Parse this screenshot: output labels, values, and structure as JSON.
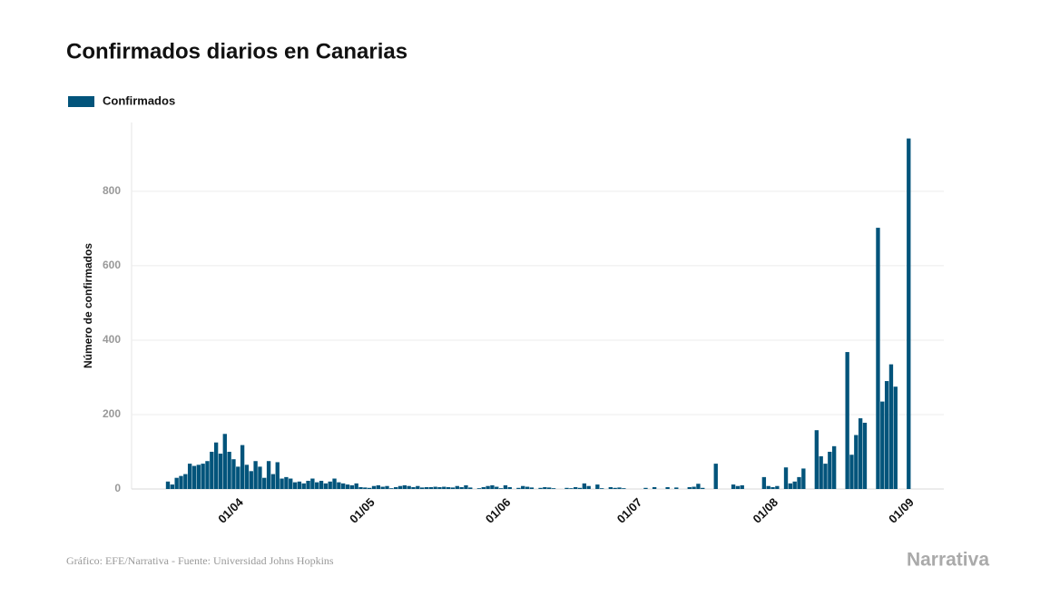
{
  "chart_data": {
    "type": "bar",
    "title": "Confirmados diarios en Canarias",
    "y_label": "Número de confirmados",
    "source": "Gráfico: EFE/Narrativa - Fuente: Universidad Johns Hopkins",
    "logo": "Narrativa",
    "categories": [
      null,
      null,
      null,
      null,
      null,
      null,
      null,
      null,
      null,
      null,
      null,
      null,
      null,
      null,
      null,
      null,
      "01/04",
      null,
      null,
      null,
      null,
      null,
      null,
      null,
      null,
      null,
      null,
      null,
      null,
      null,
      null,
      null,
      null,
      null,
      null,
      null,
      null,
      null,
      null,
      null,
      null,
      null,
      null,
      null,
      null,
      null,
      "01/05",
      null,
      null,
      null,
      null,
      null,
      null,
      null,
      null,
      null,
      null,
      null,
      null,
      null,
      null,
      null,
      null,
      null,
      null,
      null,
      null,
      null,
      null,
      null,
      null,
      null,
      null,
      null,
      null,
      null,
      null,
      "01/06",
      null,
      null,
      null,
      null,
      null,
      null,
      null,
      null,
      null,
      null,
      null,
      null,
      null,
      null,
      null,
      null,
      null,
      null,
      null,
      null,
      null,
      null,
      null,
      null,
      null,
      null,
      null,
      null,
      null,
      "01/07",
      null,
      null,
      null,
      null,
      null,
      null,
      null,
      null,
      null,
      null,
      null,
      null,
      null,
      null,
      null,
      null,
      null,
      null,
      null,
      null,
      null,
      null,
      null,
      null,
      null,
      null,
      null,
      null,
      null,
      null,
      "01/08",
      null,
      null,
      null,
      null,
      null,
      null,
      null,
      null,
      null,
      null,
      null,
      null,
      null,
      null,
      null,
      null,
      null,
      null,
      null,
      null,
      null,
      null,
      null,
      null,
      null,
      null,
      null,
      null,
      null,
      null,
      "01/09"
    ],
    "series": [
      {
        "name": "Confirmados",
        "color": "#02547b",
        "values": [
          20,
          12,
          30,
          35,
          40,
          68,
          62,
          65,
          68,
          75,
          100,
          125,
          95,
          148,
          100,
          80,
          60,
          118,
          65,
          48,
          75,
          60,
          30,
          75,
          40,
          72,
          28,
          32,
          28,
          18,
          20,
          15,
          22,
          28,
          18,
          22,
          15,
          20,
          28,
          18,
          15,
          12,
          10,
          15,
          5,
          4,
          3,
          8,
          10,
          6,
          8,
          2,
          5,
          8,
          10,
          8,
          5,
          8,
          4,
          5,
          5,
          6,
          5,
          6,
          5,
          4,
          8,
          5,
          10,
          4,
          0,
          2,
          5,
          8,
          10,
          6,
          2,
          10,
          5,
          0,
          3,
          8,
          6,
          4,
          0,
          3,
          5,
          4,
          2,
          0,
          0,
          3,
          2,
          5,
          3,
          15,
          8,
          0,
          12,
          2,
          0,
          5,
          3,
          4,
          2,
          0,
          0,
          0,
          0,
          3,
          0,
          5,
          0,
          0,
          5,
          0,
          4,
          0,
          0,
          5,
          6,
          14,
          3,
          0,
          0,
          68,
          0,
          0,
          0,
          12,
          8,
          10,
          0,
          0,
          0,
          0,
          32,
          8,
          5,
          8,
          0,
          58,
          15,
          20,
          32,
          55,
          0,
          0,
          158,
          88,
          68,
          100,
          115,
          0,
          0,
          368,
          92,
          145,
          190,
          178,
          0,
          0,
          702,
          235,
          290,
          335,
          275,
          0,
          0,
          942
        ]
      }
    ],
    "ylim": [
      0,
      985
    ],
    "yticks": [
      0,
      200,
      400,
      600,
      800
    ],
    "grid": true
  }
}
